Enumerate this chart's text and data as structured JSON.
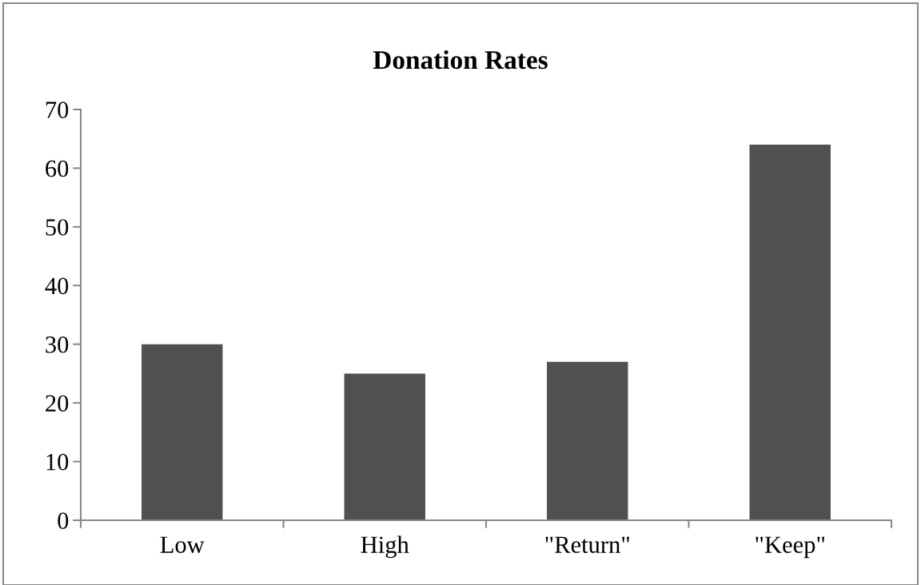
{
  "chart_data": {
    "type": "bar",
    "title": "Donation Rates",
    "categories": [
      "Low",
      "High",
      "\"Return\"",
      "\"Keep\""
    ],
    "values": [
      30,
      25,
      27,
      64
    ],
    "color": "#505050",
    "ylim": [
      0,
      70
    ],
    "yticks": [
      0,
      10,
      20,
      30,
      40,
      50,
      60,
      70
    ],
    "grid": false,
    "legend": false
  }
}
